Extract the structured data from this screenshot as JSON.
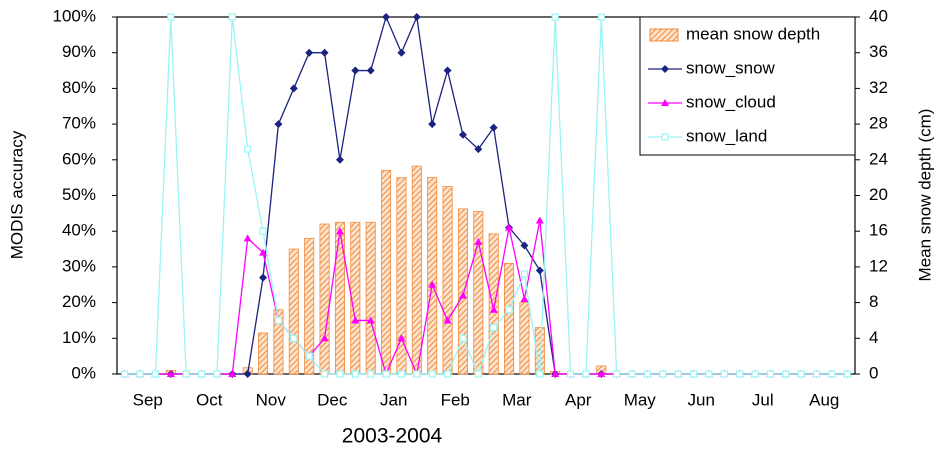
{
  "chart_data": {
    "type": "combo",
    "x_label": "2003-2004",
    "y_label": "MODIS accuracy",
    "y2_label": "Mean snow depth (cm)",
    "categories": [
      null,
      "Sep",
      null,
      null,
      null,
      "Oct",
      null,
      null,
      null,
      "Nov",
      null,
      null,
      null,
      "Dec",
      null,
      null,
      null,
      "Jan",
      null,
      null,
      null,
      "Feb",
      null,
      null,
      null,
      "Mar",
      null,
      null,
      null,
      "Apr",
      null,
      null,
      null,
      "May",
      null,
      null,
      null,
      "Jun",
      null,
      null,
      null,
      "Jul",
      null,
      null,
      null,
      "Aug",
      null,
      null
    ],
    "ylim": [
      0,
      100
    ],
    "yticks": [
      {
        "value": 0,
        "label": "0%"
      },
      {
        "value": 10,
        "label": "10%"
      },
      {
        "value": 20,
        "label": "20%"
      },
      {
        "value": 30,
        "label": "30%"
      },
      {
        "value": 40,
        "label": "40%"
      },
      {
        "value": 50,
        "label": "50%"
      },
      {
        "value": 60,
        "label": "60%"
      },
      {
        "value": 70,
        "label": "70%"
      },
      {
        "value": 80,
        "label": "80%"
      },
      {
        "value": 90,
        "label": "90%"
      },
      {
        "value": 100,
        "label": "100%"
      }
    ],
    "y2lim": [
      0,
      40
    ],
    "y2ticks": [
      0,
      4,
      8,
      12,
      16,
      20,
      24,
      28,
      32,
      36,
      40
    ],
    "legend": "top-right",
    "series": [
      {
        "name": "mean snow depth",
        "type": "bar",
        "axis": "y2",
        "color": "#f08a3c",
        "values": [
          0,
          0,
          0,
          0.4,
          0,
          0,
          0,
          0,
          0.7,
          4.6,
          7.2,
          14,
          15.2,
          16.8,
          17,
          17,
          17,
          22.8,
          22,
          23.3,
          22,
          21,
          18.5,
          18.2,
          15.7,
          12.4,
          8,
          5.2,
          0.3,
          0,
          0,
          0.9,
          0,
          0,
          0,
          0,
          0,
          0,
          0,
          0,
          0,
          0,
          0,
          0,
          0,
          0,
          0,
          0
        ]
      },
      {
        "name": "snow_snow",
        "type": "line",
        "marker": "diamond",
        "color": "#1a2380",
        "values": [
          0,
          0,
          0,
          0,
          0,
          0,
          0,
          0,
          0,
          27,
          70,
          80,
          90,
          90,
          60,
          85,
          85,
          100,
          90,
          100,
          70,
          85,
          67,
          63,
          69,
          41,
          36,
          29,
          0,
          0,
          0,
          0,
          0,
          0,
          0,
          0,
          0,
          0,
          0,
          0,
          0,
          0,
          0,
          0,
          0,
          0,
          0,
          0
        ]
      },
      {
        "name": "snow_cloud",
        "type": "line",
        "marker": "triangle",
        "color": "#ff00ff",
        "values": [
          0,
          0,
          0,
          0,
          0,
          0,
          0,
          0,
          38,
          34,
          15,
          10,
          5,
          10,
          40,
          15,
          15,
          0,
          10,
          0,
          25,
          15,
          22,
          37,
          18,
          41,
          21,
          43,
          0,
          0,
          0,
          0,
          0,
          0,
          0,
          0,
          0,
          0,
          0,
          0,
          0,
          0,
          0,
          0,
          0,
          0,
          0,
          0
        ]
      },
      {
        "name": "snow_land",
        "type": "line",
        "marker": "square",
        "color": "#99f5f5",
        "values": [
          0,
          0,
          0,
          100,
          0,
          0,
          0,
          100,
          63,
          40,
          15,
          10,
          5,
          0,
          0,
          0,
          0,
          0,
          0,
          0,
          0,
          0,
          10,
          0,
          13,
          18,
          28,
          0,
          100,
          0,
          0,
          100,
          0,
          0,
          0,
          0,
          0,
          0,
          0,
          0,
          0,
          0,
          0,
          0,
          0,
          0,
          0,
          0
        ]
      }
    ]
  }
}
